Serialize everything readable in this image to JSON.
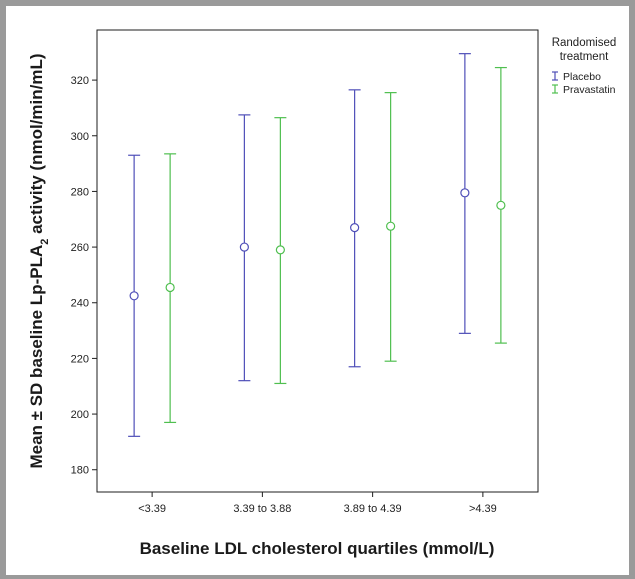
{
  "chart_data": {
    "type": "errorbar",
    "title": "",
    "xlabel": "Baseline LDL cholesterol quartiles (mmol/L)",
    "ylabel_main": "Mean ± SD baseline Lp-PLA",
    "ylabel_sub": "2",
    "ylabel_tail": " activity (nmol/min/mL)",
    "categories": [
      "<3.39",
      "3.39 to 3.88",
      "3.89 to 4.39",
      ">4.39"
    ],
    "ylim": [
      172,
      338
    ],
    "yticks": [
      "180",
      "200",
      "220",
      "240",
      "260",
      "280",
      "300",
      "320"
    ],
    "legend": {
      "title_line1": "Randomised",
      "title_line2": "treatment",
      "position": "top-right"
    },
    "series": [
      {
        "name": "Placebo",
        "color": "#4f4fb8",
        "mean": [
          242.5,
          260,
          267,
          279.5
        ],
        "low": [
          192,
          212,
          217,
          229
        ],
        "high": [
          293,
          307.5,
          316.5,
          329.5
        ]
      },
      {
        "name": "Pravastatin",
        "color": "#4fbf4f",
        "mean": [
          245.5,
          259,
          267.5,
          275
        ],
        "low": [
          197,
          211,
          219,
          225.5
        ],
        "high": [
          293.5,
          306.5,
          315.5,
          324.5
        ]
      }
    ]
  }
}
